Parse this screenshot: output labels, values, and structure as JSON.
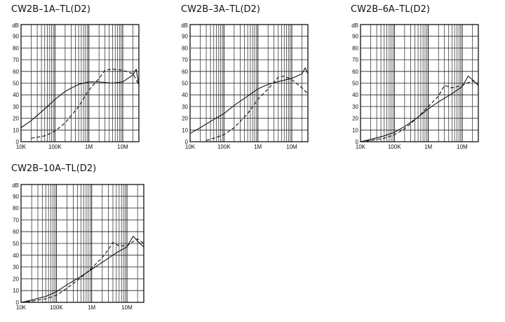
{
  "colors": {
    "ink": "#111111",
    "grid": "#222222",
    "background": "#ffffff"
  },
  "chart_data": [
    {
      "type": "line",
      "title": "CW2B–1A–TL(D2)",
      "ylabel": "dB",
      "xscale": "log",
      "xlim": [
        10000,
        30000000
      ],
      "ylim": [
        0,
        100
      ],
      "yticks": [
        0,
        10,
        20,
        30,
        40,
        50,
        60,
        70,
        80,
        90
      ],
      "xticks": [
        {
          "value": 10000,
          "label": "10K"
        },
        {
          "value": 100000,
          "label": "100K"
        },
        {
          "value": 1000000,
          "label": "1M"
        },
        {
          "value": 10000000,
          "label": "10M"
        }
      ],
      "grid": true,
      "series": [
        {
          "style": "solid",
          "x": [
            10000,
            20000,
            50000,
            100000,
            200000,
            500000,
            1000000,
            2000000,
            5000000,
            10000000,
            20000000,
            25000000,
            30000000
          ],
          "values": [
            12,
            18,
            28,
            36,
            43,
            49,
            51,
            51,
            50,
            51,
            57,
            62,
            48
          ]
        },
        {
          "style": "dashed",
          "x": [
            20000,
            50000,
            100000,
            200000,
            500000,
            1000000,
            2000000,
            3000000,
            5000000,
            10000000,
            20000000,
            25000000,
            30000000
          ],
          "values": [
            3,
            5,
            9,
            16,
            30,
            44,
            54,
            61,
            62,
            61,
            58,
            53,
            48
          ]
        }
      ]
    },
    {
      "type": "line",
      "title": "CW2B–3A–TL(D2)",
      "ylabel": "dB",
      "xscale": "log",
      "xlim": [
        10000,
        30000000
      ],
      "ylim": [
        0,
        100
      ],
      "yticks": [
        0,
        10,
        20,
        30,
        40,
        50,
        60,
        70,
        80,
        90
      ],
      "xticks": [
        {
          "value": 10000,
          "label": "10K"
        },
        {
          "value": 100000,
          "label": "100K"
        },
        {
          "value": 1000000,
          "label": "1M"
        },
        {
          "value": 10000000,
          "label": "10M"
        }
      ],
      "grid": true,
      "series": [
        {
          "style": "solid",
          "x": [
            10000,
            20000,
            50000,
            100000,
            200000,
            500000,
            1000000,
            2000000,
            5000000,
            10000000,
            20000000,
            25000000,
            30000000
          ],
          "values": [
            7,
            12,
            19,
            24,
            31,
            39,
            45,
            49,
            52,
            54,
            58,
            63,
            58
          ]
        },
        {
          "style": "dashed",
          "x": [
            30000,
            50000,
            100000,
            200000,
            500000,
            1000000,
            2000000,
            4000000,
            6000000,
            10000000,
            20000000,
            30000000
          ],
          "values": [
            1,
            3,
            6,
            12,
            24,
            36,
            45,
            55,
            56,
            53,
            46,
            41
          ]
        }
      ]
    },
    {
      "type": "line",
      "title": "CW2B–6A–TL(D2)",
      "ylabel": "dB",
      "xscale": "log",
      "xlim": [
        10000,
        30000000
      ],
      "ylim": [
        0,
        100
      ],
      "yticks": [
        0,
        10,
        20,
        30,
        40,
        50,
        60,
        70,
        80,
        90
      ],
      "xticks": [
        {
          "value": 10000,
          "label": "10K"
        },
        {
          "value": 100000,
          "label": "100K"
        },
        {
          "value": 1000000,
          "label": "1M"
        },
        {
          "value": 10000000,
          "label": "10M"
        }
      ],
      "grid": true,
      "series": [
        {
          "style": "solid",
          "x": [
            10000,
            20000,
            50000,
            100000,
            200000,
            500000,
            1000000,
            2000000,
            5000000,
            10000000,
            15000000,
            20000000,
            30000000
          ],
          "values": [
            0,
            2,
            5,
            8,
            13,
            21,
            28,
            34,
            41,
            47,
            56,
            53,
            48
          ]
        },
        {
          "style": "dashed",
          "x": [
            10000,
            20000,
            50000,
            100000,
            200000,
            500000,
            1000000,
            2000000,
            3000000,
            5000000,
            10000000,
            20000000,
            30000000
          ],
          "values": [
            0,
            1,
            3,
            6,
            11,
            21,
            30,
            39,
            48,
            46,
            48,
            52,
            50
          ]
        }
      ]
    },
    {
      "type": "line",
      "title": "CW2B–10A–TL(D2)",
      "ylabel": "dB",
      "xscale": "log",
      "xlim": [
        10000,
        30000000
      ],
      "ylim": [
        0,
        100
      ],
      "yticks": [
        0,
        10,
        20,
        30,
        40,
        50,
        60,
        70,
        80,
        90
      ],
      "xticks": [
        {
          "value": 10000,
          "label": "10K"
        },
        {
          "value": 100000,
          "label": "100K"
        },
        {
          "value": 1000000,
          "label": "1M"
        },
        {
          "value": 10000000,
          "label": "10M"
        }
      ],
      "grid": true,
      "series": [
        {
          "style": "solid",
          "x": [
            10000,
            20000,
            50000,
            100000,
            200000,
            500000,
            1000000,
            2000000,
            5000000,
            10000000,
            15000000,
            20000000,
            30000000
          ],
          "values": [
            0,
            2,
            5,
            9,
            15,
            22,
            28,
            34,
            42,
            47,
            56,
            52,
            47
          ]
        },
        {
          "style": "dashed",
          "x": [
            10000,
            20000,
            50000,
            100000,
            200000,
            500000,
            1000000,
            2000000,
            3000000,
            4000000,
            6000000,
            10000000,
            20000000,
            30000000
          ],
          "values": [
            0,
            1,
            3,
            6,
            12,
            21,
            29,
            38,
            45,
            51,
            48,
            48,
            54,
            50
          ]
        }
      ]
    }
  ]
}
